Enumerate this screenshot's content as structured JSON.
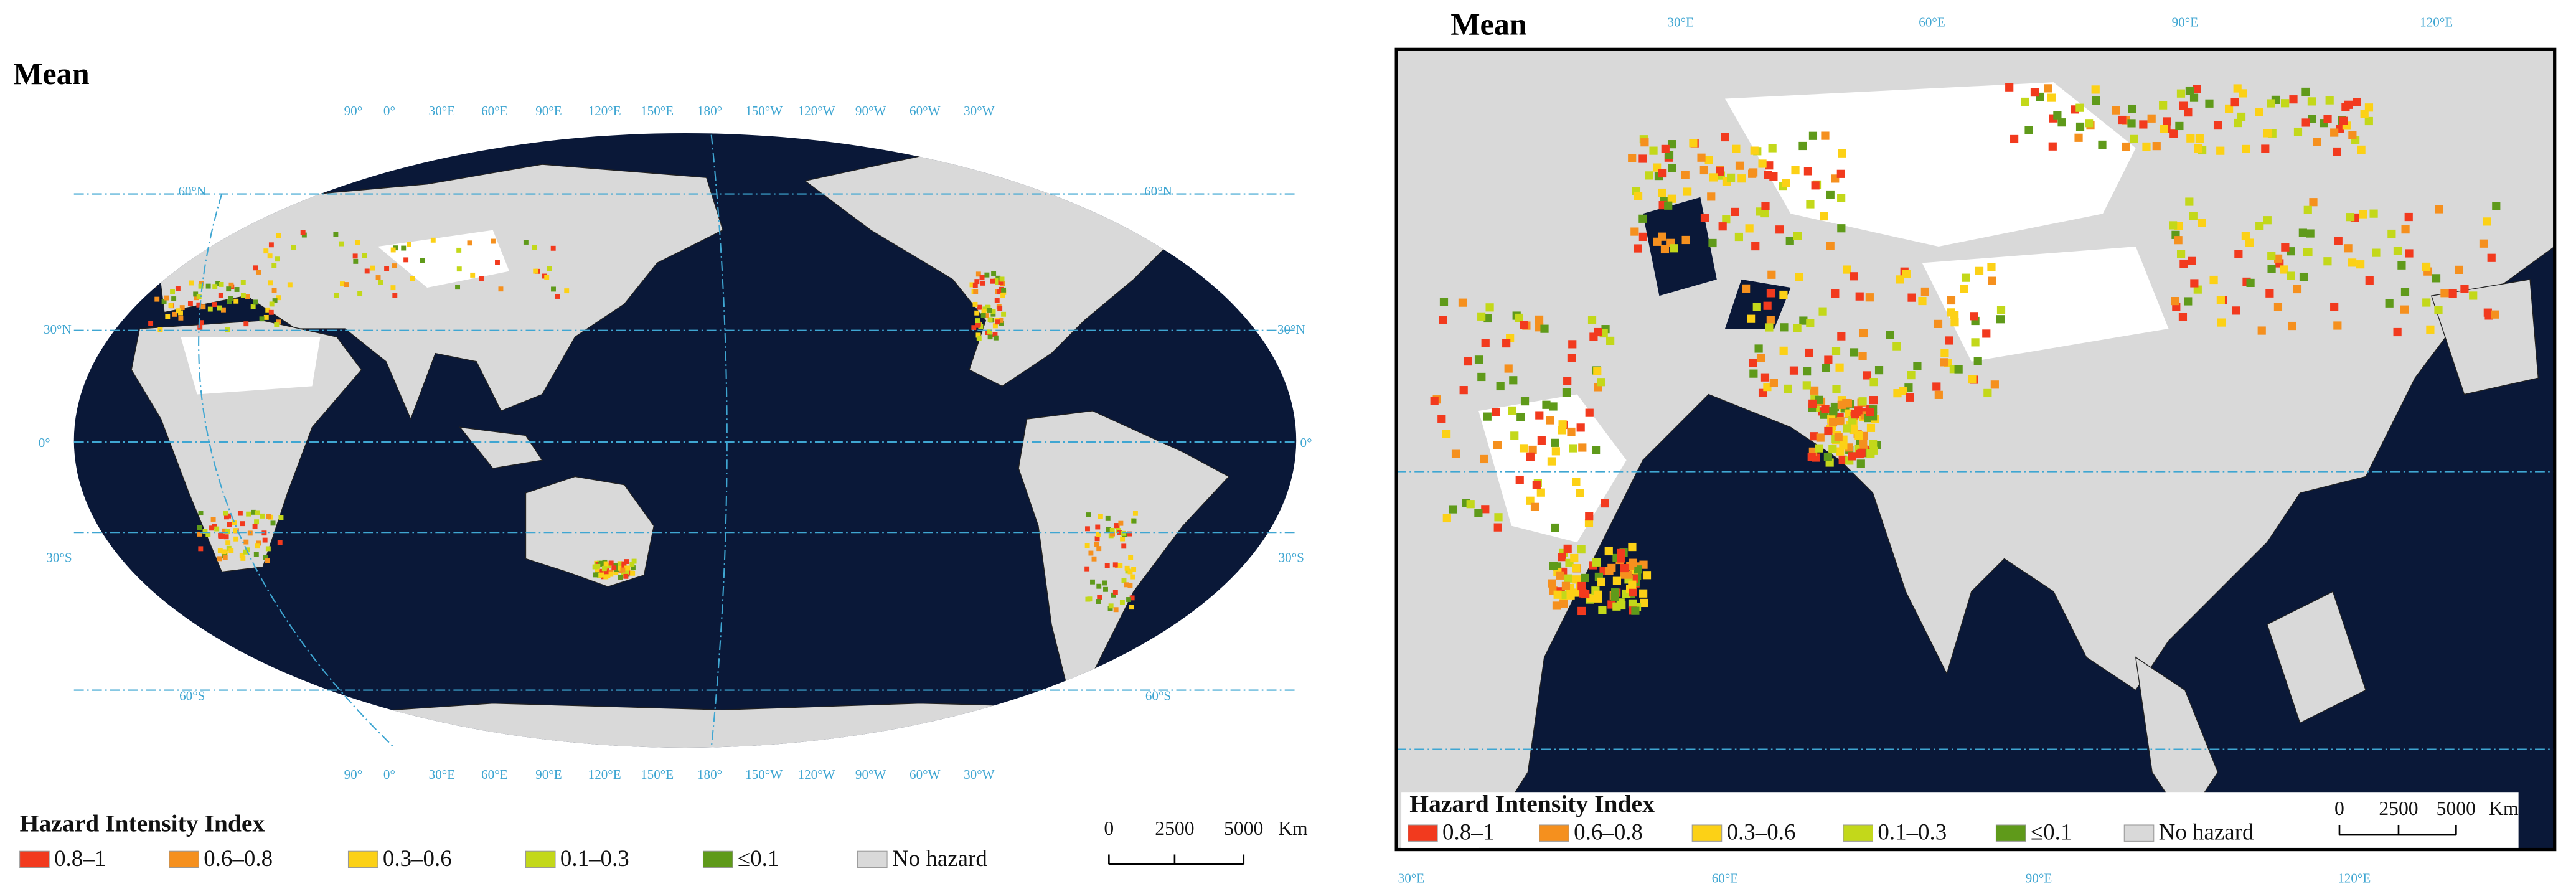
{
  "panels": [
    {
      "title": "Mean",
      "top_labels": [
        "90°",
        "0°",
        "30°E",
        "60°E",
        "90°E",
        "120°E",
        "150°E",
        "180°",
        "150°W",
        "120°W",
        "90°W",
        "60°W",
        "30°W"
      ],
      "bottom_labels": [
        "90°",
        "0°",
        "30°E",
        "60°E",
        "90°E",
        "120°E",
        "150°E",
        "180°",
        "150°W",
        "120°W",
        "90°W",
        "60°W",
        "30°W"
      ],
      "left_labels": [
        "60°N",
        "30°N",
        "0°",
        "30°S",
        "60°S"
      ],
      "right_labels": [
        "60°N",
        "30°N",
        "0°",
        "30°S",
        "60°S"
      ]
    },
    {
      "title": "Mean",
      "top_labels": [
        "30°E",
        "60°E",
        "90°E",
        "120°E"
      ],
      "bottom_labels": [
        "30°E",
        "60°E",
        "90°E",
        "120°E"
      ]
    }
  ],
  "legend": {
    "title": "Hazard Intensity Index",
    "items": [
      {
        "label": "0.8–1",
        "color": "#f23a1e"
      },
      {
        "label": "0.6–0.8",
        "color": "#f5901e"
      },
      {
        "label": "0.3–0.6",
        "color": "#fcd116"
      },
      {
        "label": "0.1–0.3",
        "color": "#c3d81a"
      },
      {
        "label": "≤0.1",
        "color": "#5f9a1a"
      },
      {
        "label": "No hazard",
        "color": "#d9d9d9"
      }
    ]
  },
  "scale_bar": {
    "ticks": [
      0,
      2500,
      5000
    ],
    "unit": "Km"
  }
}
